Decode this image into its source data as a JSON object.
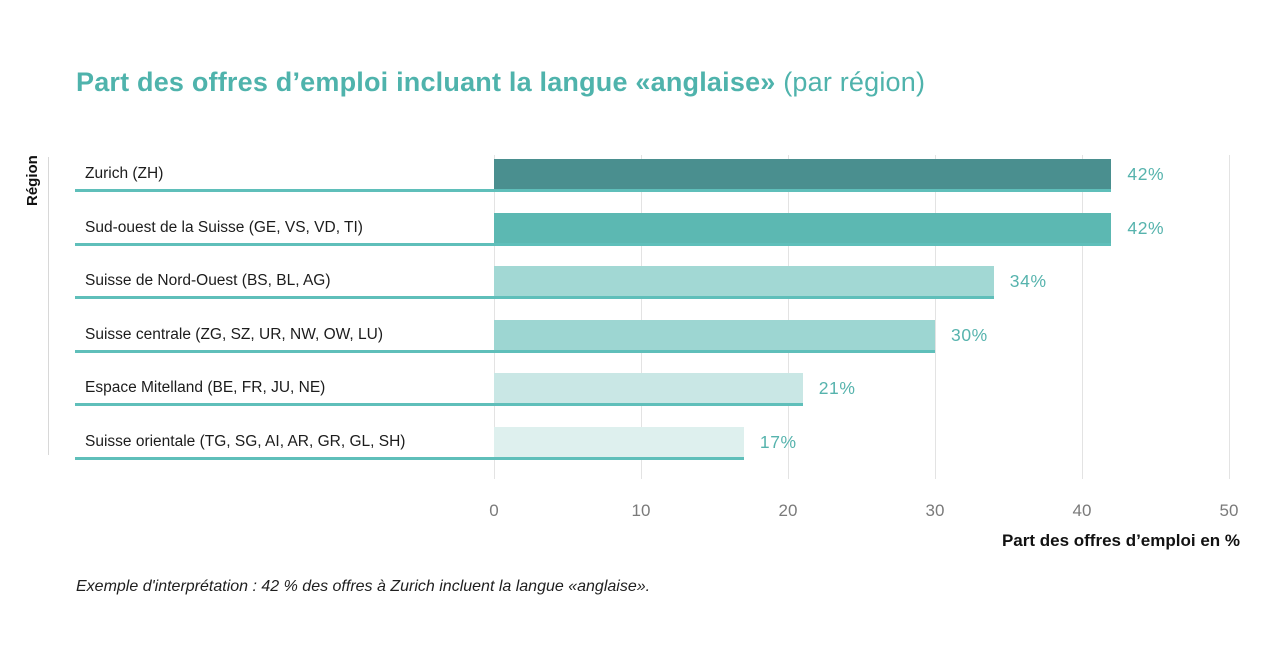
{
  "title": {
    "main": "Part des offres d’emploi incluant la langue «anglaise»",
    "suffix": " (par région)"
  },
  "axes": {
    "y_label": "Région",
    "x_label": "Part des offres d’emploi en %"
  },
  "footnote": "Exemple d'interprétation : 42 % des offres à Zurich incluent la langue «anglaise».",
  "colors": {
    "title": "#4fb3ac",
    "value_label": "#56b3ad",
    "bar_underline": "#5fbfba",
    "bars": [
      "#4a8f8f",
      "#5cb8b2",
      "#a2d8d4",
      "#9dd6d2",
      "#c9e7e5",
      "#def0ee"
    ],
    "gridline": "#e3e3e3",
    "axis_line": "#d8d8d8",
    "tick_label": "#7a7a7a",
    "category_label": "#1c1c1c"
  },
  "chart_data": {
    "type": "bar",
    "orientation": "horizontal",
    "title": "Part des offres d’emploi incluant la langue «anglaise» (par région)",
    "xlabel": "Part des offres d’emploi en %",
    "ylabel": "Région",
    "categories": [
      "Zurich (ZH)",
      "Sud-ouest de la Suisse (GE, VS, VD, TI)",
      "Suisse de Nord-Ouest (BS, BL, AG)",
      "Suisse centrale (ZG, SZ, UR, NW, OW, LU)",
      "Espace Mitelland (BE, FR, JU, NE)",
      "Suisse orientale (TG, SG, AI, AR, GR, GL, SH)"
    ],
    "values": [
      42,
      42,
      34,
      30,
      21,
      17
    ],
    "value_labels": [
      "42%",
      "42%",
      "34%",
      "30%",
      "21%",
      "17%"
    ],
    "xlim": [
      0,
      50
    ],
    "xticks": [
      0,
      10,
      20,
      30,
      40,
      50
    ],
    "grid": "vertical",
    "legend": "none"
  }
}
